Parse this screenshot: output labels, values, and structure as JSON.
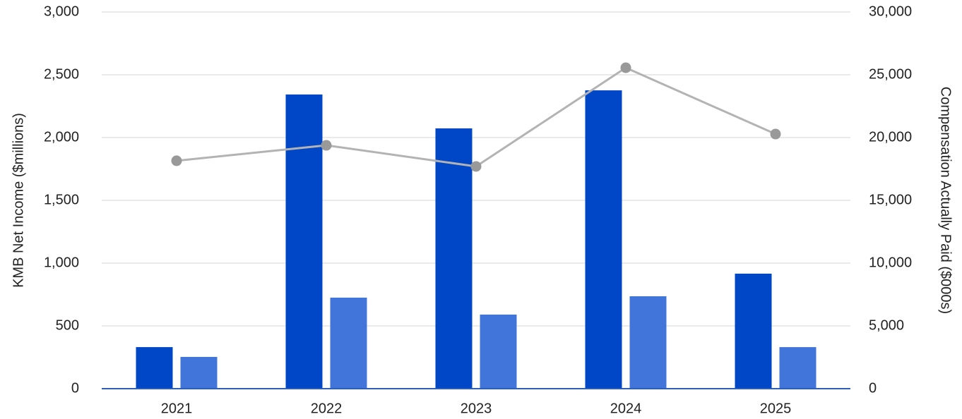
{
  "chart_data": {
    "type": "bar",
    "y_label": "KMB Net Income ($millions)",
    "y2_label": "Compensation Actually Paid ($000s)",
    "categories": [
      "2021",
      "2022",
      "2023",
      "2024",
      "2025"
    ],
    "series": [
      {
        "type": "bar",
        "axis": "y2",
        "color": "#0047c8",
        "values": [
          3310,
          23430,
          20730,
          23760,
          9160
        ]
      },
      {
        "type": "bar",
        "axis": "y2",
        "color": "#4275d9",
        "values": [
          2530,
          7250,
          5900,
          7360,
          3310
        ]
      },
      {
        "type": "line",
        "color": "#b3b3b3",
        "marker_color": "#999999",
        "values": [
          1815,
          1938,
          1770,
          2556,
          2028
        ]
      }
    ],
    "ylim": [
      0,
      3000
    ],
    "yticks": [
      0,
      500,
      {
        "value": 1000,
        "label": "1,000"
      },
      {
        "value": 1500,
        "label": "1,500"
      },
      {
        "value": 2000,
        "label": "2,000"
      },
      {
        "value": 2500,
        "label": "2,500"
      },
      {
        "value": 3000,
        "label": "3,000"
      }
    ],
    "y2lim": [
      0,
      30000
    ],
    "y2ticks": [
      0,
      {
        "value": 5000,
        "label": "5,000"
      },
      {
        "value": 10000,
        "label": "10,000"
      },
      {
        "value": 15000,
        "label": "15,000"
      },
      {
        "value": 20000,
        "label": "20,000"
      },
      {
        "value": 25000,
        "label": "25,000"
      },
      {
        "value": 30000,
        "label": "30,000"
      }
    ],
    "grid": true
  }
}
